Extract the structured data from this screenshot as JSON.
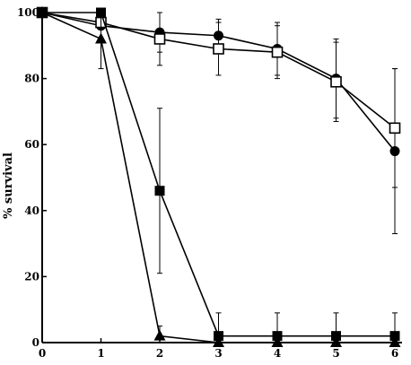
{
  "chart_data": {
    "type": "line",
    "title": "",
    "xlabel": "",
    "ylabel": "% survival",
    "x": [
      0,
      1,
      2,
      3,
      4,
      5,
      6
    ],
    "xlim": [
      0,
      6
    ],
    "ylim": [
      0,
      100
    ],
    "xticks": [
      "0",
      "1",
      "2",
      "3",
      "4",
      "5",
      "6"
    ],
    "yticks": [
      "0",
      "20",
      "40",
      "60",
      "80",
      "100"
    ],
    "grid": false,
    "legend": "none",
    "series": [
      {
        "marker": "filled-circle",
        "values": [
          100,
          96,
          94,
          93,
          89,
          80,
          58
        ],
        "err": [
          0,
          0,
          6,
          5,
          8,
          12,
          25
        ]
      },
      {
        "marker": "open-square",
        "values": [
          100,
          97,
          92,
          89,
          88,
          79,
          65
        ],
        "err": [
          0,
          0,
          8,
          8,
          8,
          12,
          18
        ]
      },
      {
        "marker": "filled-square",
        "values": [
          100,
          100,
          46,
          2,
          2,
          2,
          2
        ],
        "err": [
          0,
          0,
          25,
          7,
          7,
          7,
          7
        ]
      },
      {
        "marker": "filled-triangle",
        "values": [
          100,
          92,
          2,
          0,
          0,
          0,
          0
        ],
        "err": [
          0,
          9,
          3,
          0,
          0,
          0,
          0
        ]
      }
    ]
  }
}
